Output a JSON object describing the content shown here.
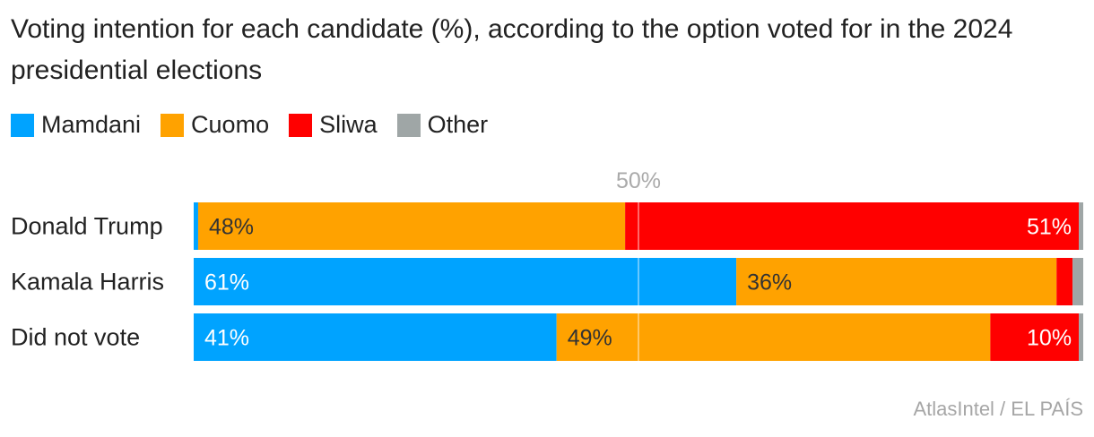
{
  "title": "Voting intention for each candidate (%), according to the option voted for in the 2024 presidential elections",
  "source": "AtlasIntel / EL PAÍS",
  "chart_data": {
    "type": "bar",
    "orientation": "horizontal",
    "stacked": true,
    "categories": [
      "Donald Trump",
      "Kamala Harris",
      "Did not vote"
    ],
    "series": [
      {
        "name": "Mamdani",
        "color": "#00a3ff",
        "values": [
          0.5,
          61,
          41
        ],
        "labels": [
          "",
          "61%",
          "41%"
        ]
      },
      {
        "name": "Cuomo",
        "color": "#ffa200",
        "values": [
          48,
          36,
          49
        ],
        "labels": [
          "48%",
          "36%",
          "49%"
        ]
      },
      {
        "name": "Sliwa",
        "color": "#ff0000",
        "values": [
          51,
          1.8,
          10
        ],
        "labels": [
          "51%",
          "",
          "10%"
        ]
      },
      {
        "name": "Other",
        "color": "#9fa6a6",
        "values": [
          0.5,
          1.2,
          0.5
        ],
        "labels": [
          "",
          "",
          ""
        ]
      }
    ],
    "reference_line": {
      "value": 50,
      "label": "50%"
    },
    "xlim": [
      0,
      100
    ],
    "legend_position": "top-left"
  }
}
